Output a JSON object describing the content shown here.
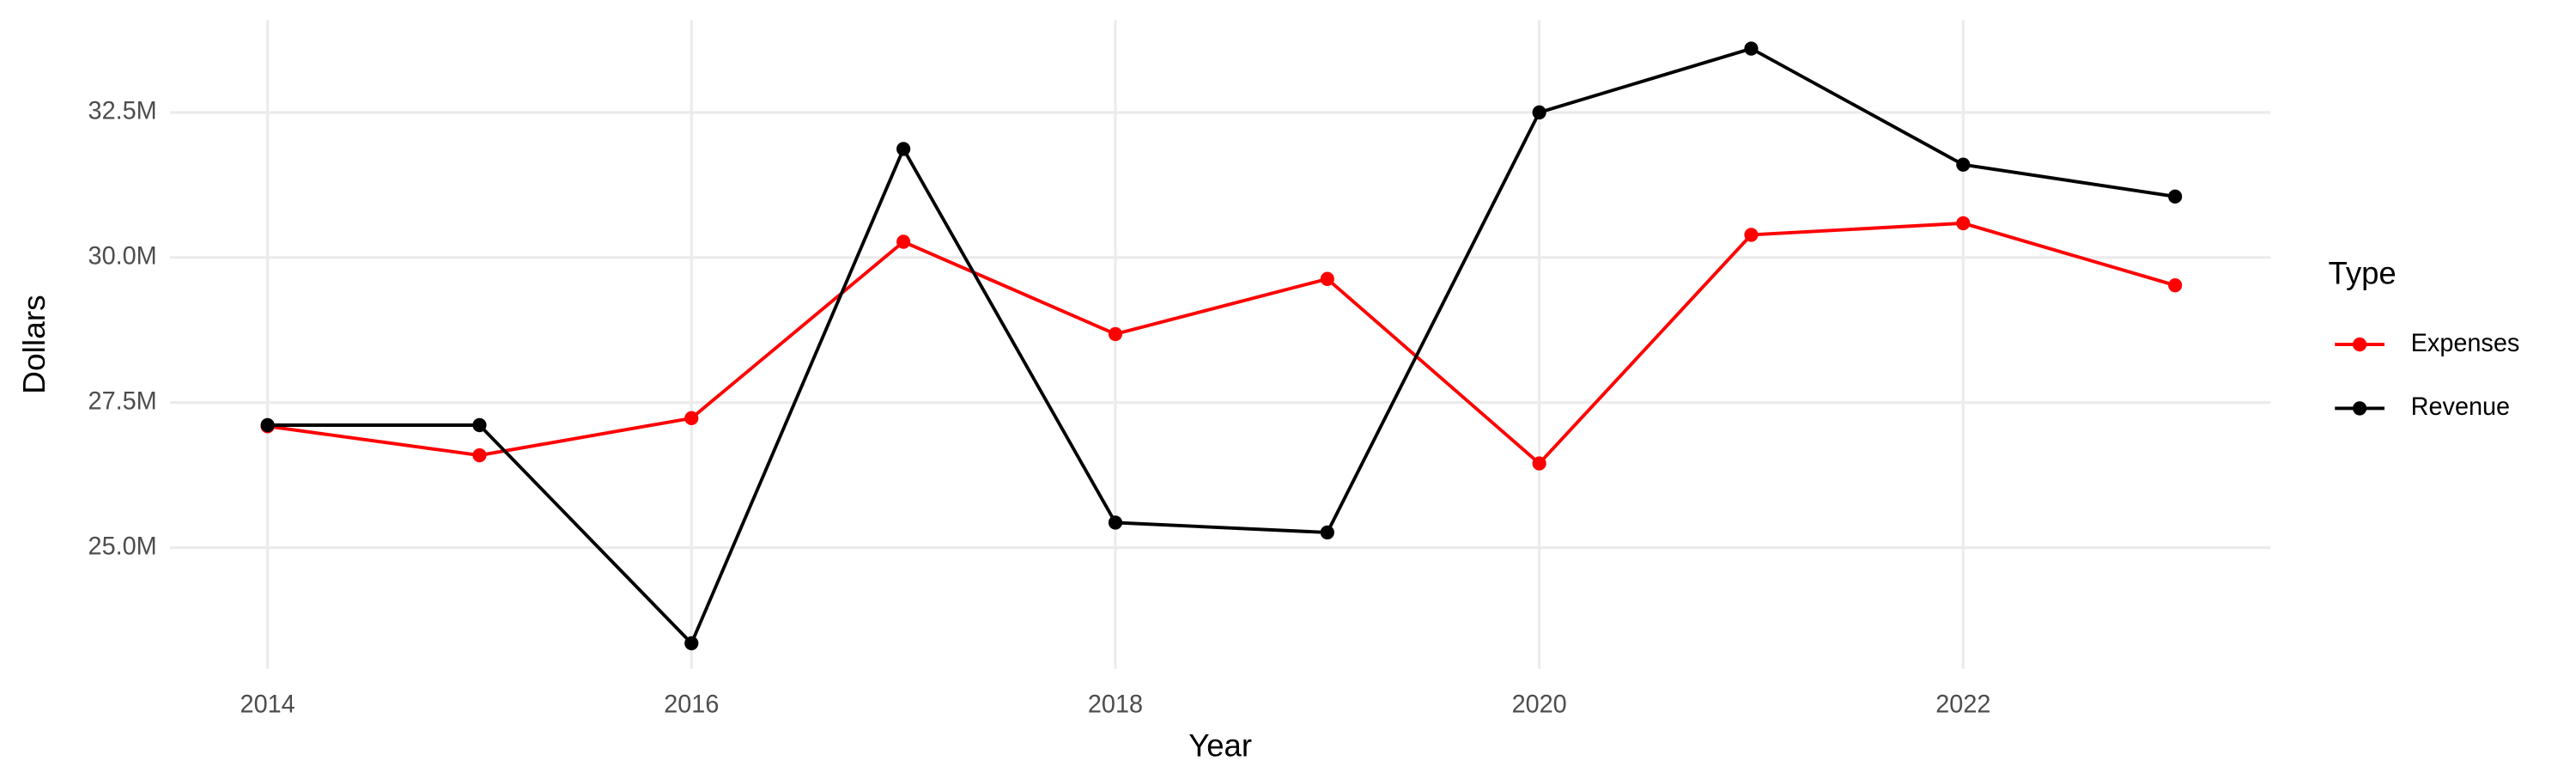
{
  "chart_data": {
    "type": "line",
    "x_label": "Year",
    "y_label": "Dollars",
    "legend_title": "Type",
    "legend_position": "right",
    "x": [
      2014,
      2015,
      2016,
      2017,
      2018,
      2019,
      2020,
      2021,
      2022,
      2023
    ],
    "series": [
      {
        "name": "Expenses",
        "color": "#ff0000",
        "values": [
          27090000,
          26590000,
          27230000,
          30270000,
          28680000,
          29630000,
          26450000,
          30390000,
          30590000,
          29520000
        ]
      },
      {
        "name": "Revenue",
        "color": "#000000",
        "values": [
          27110000,
          27110000,
          23350000,
          31870000,
          25430000,
          25260000,
          32500000,
          33600000,
          31600000,
          31050000
        ]
      }
    ],
    "xlim": [
      2013.54,
      2023.45
    ],
    "xticks": [
      2014,
      2016,
      2018,
      2020,
      2022
    ],
    "ylim": [
      22910000,
      34090000
    ],
    "yticks": [
      {
        "value": 25000000,
        "label": "25.0M"
      },
      {
        "value": 27500000,
        "label": "27.5M"
      },
      {
        "value": 30000000,
        "label": "30.0M"
      },
      {
        "value": 32500000,
        "label": "32.5M"
      }
    ],
    "grid": true
  }
}
